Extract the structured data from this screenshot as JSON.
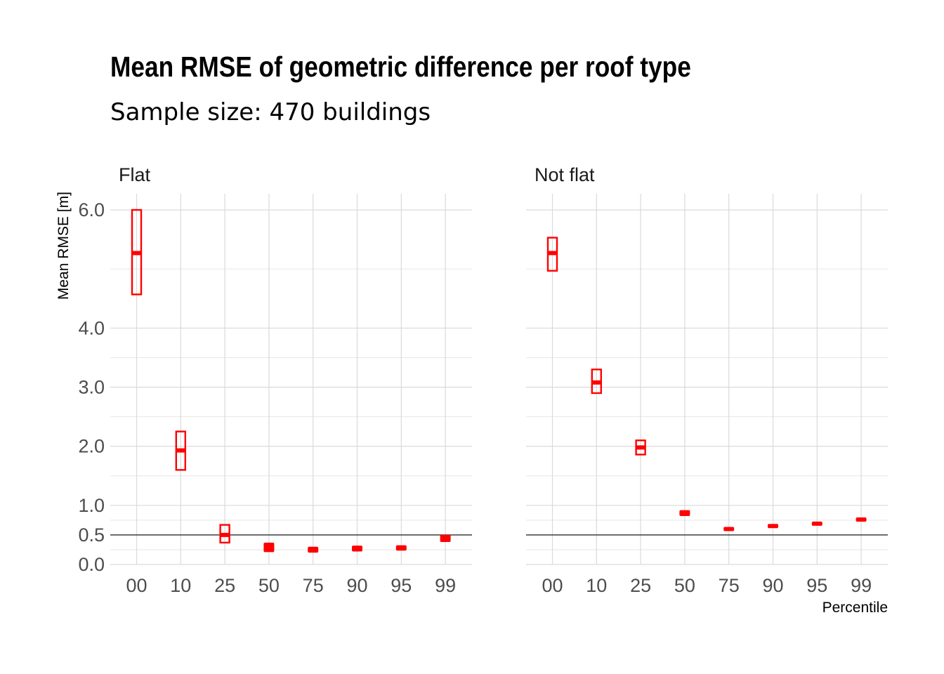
{
  "chart_data": {
    "type": "boxplot",
    "title": "Mean RMSE of geometric difference per roof type",
    "subtitle": "Sample size: 470 buildings",
    "xlabel": "Percentile",
    "ylabel": "Mean RMSE [m]",
    "categories": [
      "00",
      "10",
      "25",
      "50",
      "75",
      "90",
      "95",
      "99"
    ],
    "ylim": [
      0.0,
      6.0
    ],
    "y_ticks": [
      "0.0",
      "0.5",
      "1.0",
      "2.0",
      "3.0",
      "4.0",
      "6.0"
    ],
    "y_tick_values": [
      0.0,
      0.5,
      1.0,
      2.0,
      3.0,
      4.0,
      6.0
    ],
    "y_minor_values": [
      0.25,
      0.75,
      1.5,
      2.5,
      3.5,
      5.0
    ],
    "reference_line": 0.5,
    "grid": true,
    "box_color": "#ff0000",
    "panels": [
      {
        "label": "Flat",
        "boxes": [
          {
            "category": "00",
            "low": 4.57,
            "median": 5.27,
            "high": 6.0
          },
          {
            "category": "10",
            "low": 1.6,
            "median": 1.93,
            "high": 2.25
          },
          {
            "category": "25",
            "low": 0.37,
            "median": 0.5,
            "high": 0.67
          },
          {
            "category": "50",
            "low": 0.21,
            "median": 0.29,
            "high": 0.37
          },
          {
            "category": "75",
            "low": 0.2,
            "median": 0.25,
            "high": 0.3
          },
          {
            "category": "90",
            "low": 0.22,
            "median": 0.27,
            "high": 0.32
          },
          {
            "category": "95",
            "low": 0.24,
            "median": 0.28,
            "high": 0.33
          },
          {
            "category": "99",
            "low": 0.38,
            "median": 0.44,
            "high": 0.5
          }
        ]
      },
      {
        "label": "Not flat",
        "boxes": [
          {
            "category": "00",
            "low": 4.97,
            "median": 5.27,
            "high": 5.53
          },
          {
            "category": "10",
            "low": 2.9,
            "median": 3.08,
            "high": 3.3
          },
          {
            "category": "25",
            "low": 1.86,
            "median": 1.98,
            "high": 2.1
          },
          {
            "category": "50",
            "low": 0.82,
            "median": 0.87,
            "high": 0.92
          },
          {
            "category": "75",
            "low": 0.57,
            "median": 0.6,
            "high": 0.63
          },
          {
            "category": "90",
            "low": 0.62,
            "median": 0.65,
            "high": 0.68
          },
          {
            "category": "95",
            "low": 0.66,
            "median": 0.69,
            "high": 0.72
          },
          {
            "category": "99",
            "low": 0.73,
            "median": 0.76,
            "high": 0.79
          }
        ]
      }
    ]
  }
}
